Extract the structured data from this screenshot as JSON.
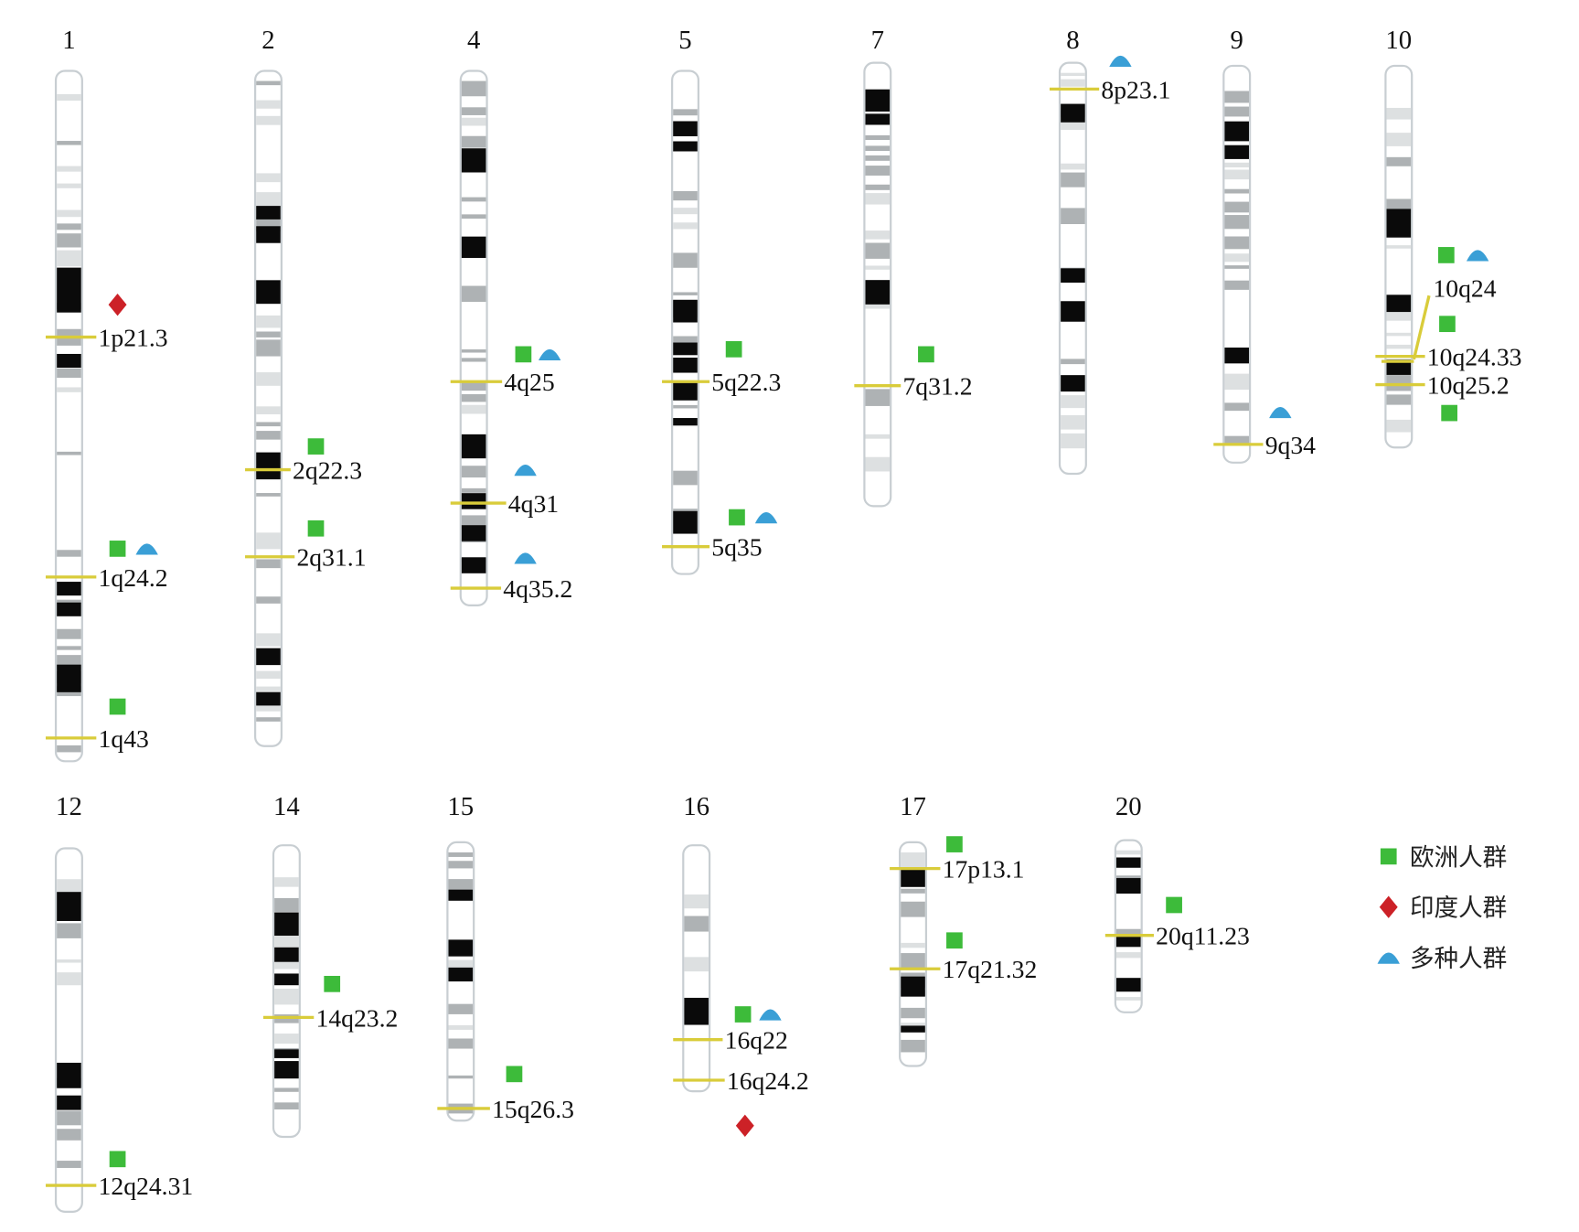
{
  "colors": {
    "europe": "#3dbb3a",
    "india": "#cc2127",
    "multi": "#3a9fd6",
    "locus_line": "#d9cc3a",
    "dark_band": "#0a0a0a",
    "mid_band": "#aeb2b4",
    "light_band": "#dde0e1"
  },
  "legend": [
    {
      "label": "欧洲人群",
      "icon": "green-square-icon"
    },
    {
      "label": "印度人群",
      "icon": "red-diamond-icon"
    },
    {
      "label": "多种人群",
      "icon": "blue-triangle-icon"
    }
  ],
  "chromosomes": [
    {
      "id": "1",
      "loci": [
        {
          "label": "1p21.3",
          "markers": [
            "india"
          ]
        },
        {
          "label": "1q24.2",
          "markers": [
            "europe",
            "multi"
          ]
        },
        {
          "label": "1q43",
          "markers": [
            "europe"
          ]
        }
      ]
    },
    {
      "id": "2",
      "loci": [
        {
          "label": "2q22.3",
          "markers": [
            "europe"
          ]
        },
        {
          "label": "2q31.1",
          "markers": [
            "europe"
          ]
        }
      ]
    },
    {
      "id": "4",
      "loci": [
        {
          "label": "4q25",
          "markers": [
            "europe",
            "multi"
          ]
        },
        {
          "label": "4q31",
          "markers": [
            "multi"
          ]
        },
        {
          "label": "4q35.2",
          "markers": [
            "multi"
          ]
        }
      ]
    },
    {
      "id": "5",
      "loci": [
        {
          "label": "5q22.3",
          "markers": [
            "europe"
          ]
        },
        {
          "label": "5q35",
          "markers": [
            "europe",
            "multi"
          ]
        }
      ]
    },
    {
      "id": "7",
      "loci": [
        {
          "label": "7q31.2",
          "markers": [
            "europe"
          ]
        }
      ]
    },
    {
      "id": "8",
      "loci": [
        {
          "label": "8p23.1",
          "markers": [
            "multi"
          ]
        }
      ]
    },
    {
      "id": "9",
      "loci": [
        {
          "label": "9q34",
          "markers": [
            "multi"
          ]
        }
      ]
    },
    {
      "id": "10",
      "loci": [
        {
          "label": "10q24",
          "markers": [
            "europe",
            "multi"
          ]
        },
        {
          "label": "10q24.33",
          "markers": [
            "europe"
          ]
        },
        {
          "label": "10q25.2",
          "markers": [
            "europe"
          ]
        }
      ]
    },
    {
      "id": "12",
      "loci": [
        {
          "label": "12q24.31",
          "markers": [
            "europe"
          ]
        }
      ]
    },
    {
      "id": "14",
      "loci": [
        {
          "label": "14q23.2",
          "markers": [
            "europe"
          ]
        }
      ]
    },
    {
      "id": "15",
      "loci": [
        {
          "label": "15q26.3",
          "markers": [
            "europe"
          ]
        }
      ]
    },
    {
      "id": "16",
      "loci": [
        {
          "label": "16q22",
          "markers": [
            "europe",
            "multi"
          ]
        },
        {
          "label": "16q24.2",
          "markers": [
            "india"
          ]
        }
      ]
    },
    {
      "id": "17",
      "loci": [
        {
          "label": "17p13.1",
          "markers": [
            "europe"
          ]
        },
        {
          "label": "17q21.32",
          "markers": [
            "europe"
          ]
        }
      ]
    },
    {
      "id": "20",
      "loci": [
        {
          "label": "20q11.23",
          "markers": [
            "europe"
          ]
        }
      ]
    }
  ]
}
